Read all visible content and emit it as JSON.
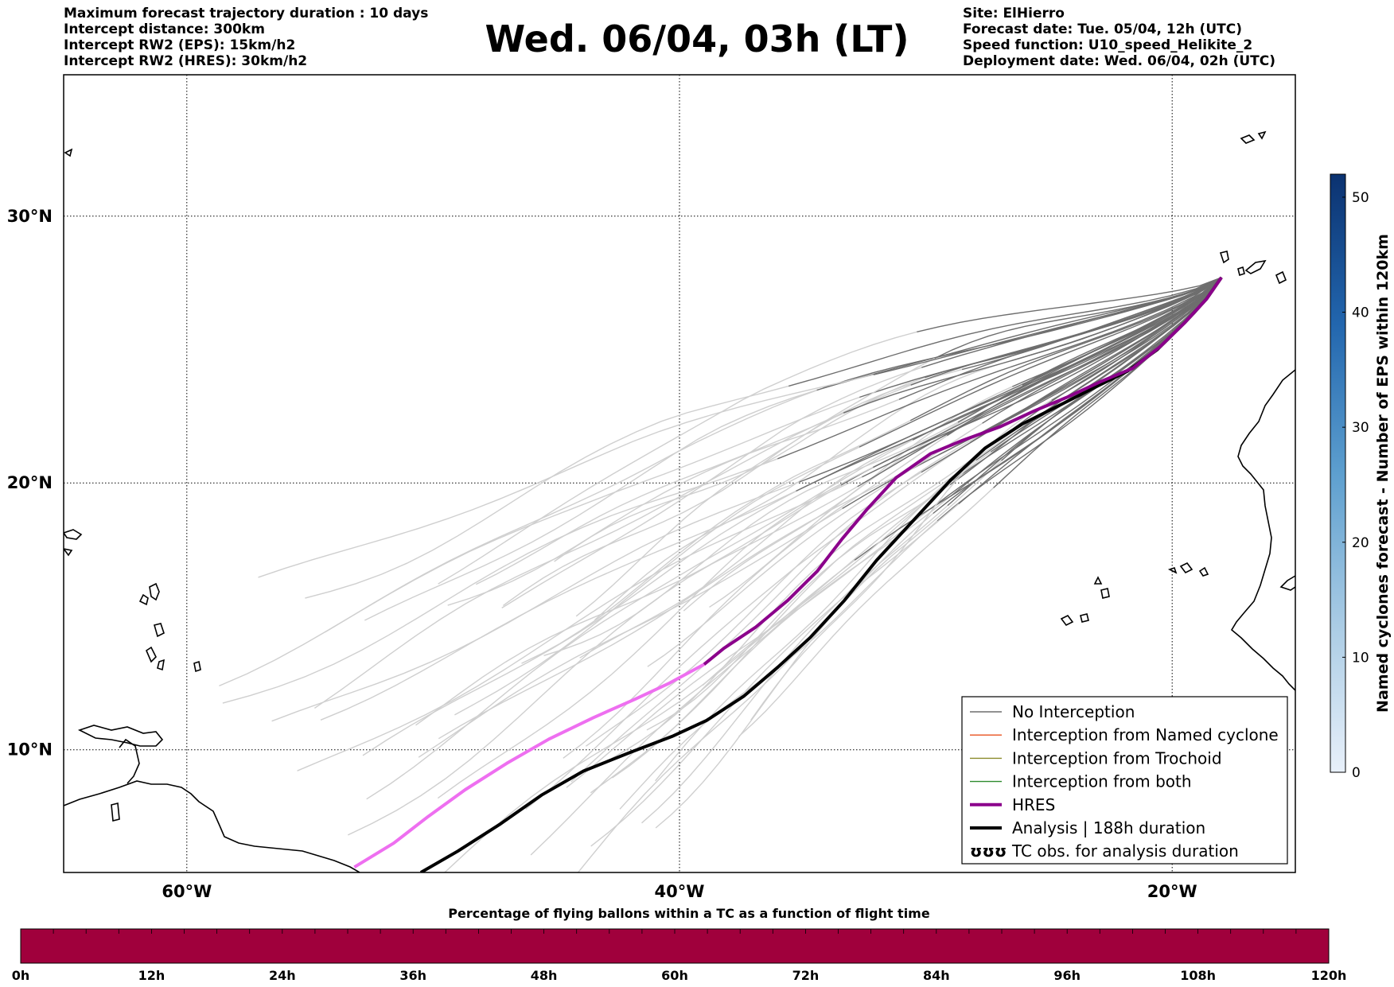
{
  "header": {
    "left": [
      "Maximum forecast trajectory duration : 10 days",
      "Intercept distance: 300km",
      "Intercept RW2 (EPS):  15km/h2",
      "Intercept RW2 (HRES): 30km/h2"
    ],
    "title": "Wed. 06/04, 03h (LT)",
    "right": [
      "Site: ElHierro",
      "Forecast date: Tue. 05/04, 12h (UTC)",
      "Speed function: U10_speed_Helikite_2",
      "Deployment date: Wed. 06/04, 02h (UTC)"
    ]
  },
  "map": {
    "lat_labels": [
      "30°N",
      "20°N",
      "10°N"
    ],
    "lon_labels": [
      "60°W",
      "40°W",
      "20°W"
    ],
    "lat_values": [
      30,
      20,
      10
    ],
    "lon_values": [
      -60,
      -40,
      -20
    ],
    "extent": {
      "lon_min": -65,
      "lon_max": -15,
      "lat_min": 5.4,
      "lat_max": 35.3
    },
    "site": {
      "name": "ElHierro",
      "lon": -18.0,
      "lat": 27.7
    },
    "colors": {
      "no_interception": "#6e6e6e",
      "no_interception_late": "#cfcfcf",
      "named_cyclone": "#e8501e",
      "trochoid": "#8a8a2a",
      "both": "#2e8b2e",
      "hres": "#8b008b",
      "hres_late": "#ee6ff0",
      "analysis": "#000000"
    },
    "hres_track": [
      [
        -18.0,
        27.7
      ],
      [
        -18.6,
        26.9
      ],
      [
        -19.5,
        26.0
      ],
      [
        -20.5,
        25.1
      ],
      [
        -21.6,
        24.3
      ],
      [
        -22.9,
        23.8
      ],
      [
        -24.3,
        23.2
      ],
      [
        -25.6,
        22.7
      ],
      [
        -27.0,
        22.1
      ],
      [
        -28.5,
        21.6
      ],
      [
        -29.8,
        21.1
      ],
      [
        -31.2,
        20.2
      ],
      [
        -32.4,
        19.0
      ],
      [
        -33.4,
        17.9
      ],
      [
        -34.4,
        16.7
      ],
      [
        -35.6,
        15.6
      ],
      [
        -36.9,
        14.6
      ],
      [
        -38.2,
        13.8
      ],
      [
        -39.0,
        13.2
      ],
      [
        -40.4,
        12.5
      ],
      [
        -41.8,
        11.9
      ],
      [
        -43.5,
        11.2
      ],
      [
        -45.3,
        10.4
      ],
      [
        -47.0,
        9.5
      ],
      [
        -48.7,
        8.5
      ],
      [
        -50.2,
        7.5
      ],
      [
        -51.6,
        6.5
      ],
      [
        -53.2,
        5.6
      ]
    ],
    "analysis_track": [
      [
        -18.0,
        27.7
      ],
      [
        -18.6,
        26.9
      ],
      [
        -19.5,
        26.0
      ],
      [
        -20.6,
        25.0
      ],
      [
        -21.8,
        24.2
      ],
      [
        -23.1,
        23.6
      ],
      [
        -24.6,
        22.9
      ],
      [
        -26.1,
        22.2
      ],
      [
        -27.6,
        21.3
      ],
      [
        -29.0,
        20.1
      ],
      [
        -30.1,
        19.0
      ],
      [
        -31.0,
        18.1
      ],
      [
        -32.0,
        17.1
      ],
      [
        -33.3,
        15.6
      ],
      [
        -34.7,
        14.2
      ],
      [
        -36.0,
        13.1
      ],
      [
        -37.4,
        12.0
      ],
      [
        -38.9,
        11.1
      ],
      [
        -40.3,
        10.5
      ],
      [
        -42.0,
        9.9
      ],
      [
        -43.9,
        9.2
      ],
      [
        -45.6,
        8.3
      ],
      [
        -47.3,
        7.2
      ],
      [
        -49.0,
        6.2
      ],
      [
        -50.5,
        5.4
      ]
    ]
  },
  "legend": {
    "items": [
      {
        "label": "No Interception",
        "style": "thin",
        "color": "#6e6e6e"
      },
      {
        "label": "Interception from Named cyclone",
        "style": "thin",
        "color": "#e8501e"
      },
      {
        "label": "Interception from Trochoid",
        "style": "thin",
        "color": "#8a8a2a"
      },
      {
        "label": "Interception from both",
        "style": "thin",
        "color": "#2e8b2e"
      },
      {
        "label": "HRES",
        "style": "thick",
        "color": "#8b008b"
      },
      {
        "label": "Analysis | 188h duration",
        "style": "thick",
        "color": "#000000"
      },
      {
        "label": "TC obs. for analysis duration",
        "style": "tc",
        "color": "#000000"
      }
    ],
    "tc_symbol": "ʊʊʊ"
  },
  "colorbar": {
    "label": "Named cyclones forecast - Number of EPS within 120km",
    "ticks": [
      "50",
      "40",
      "30",
      "20",
      "10",
      "0"
    ],
    "tick_values": [
      50,
      40,
      30,
      20,
      10,
      0
    ],
    "min": 0,
    "max": 52,
    "color_low": "#e6eef8",
    "color_high": "#0b3270"
  },
  "time_bar": {
    "title": "Percentage of flying ballons within a TC as a function of flight time",
    "ticks": [
      "0h",
      "12h",
      "24h",
      "36h",
      "48h",
      "60h",
      "72h",
      "84h",
      "96h",
      "108h",
      "120h"
    ],
    "color": "#a0003c"
  }
}
